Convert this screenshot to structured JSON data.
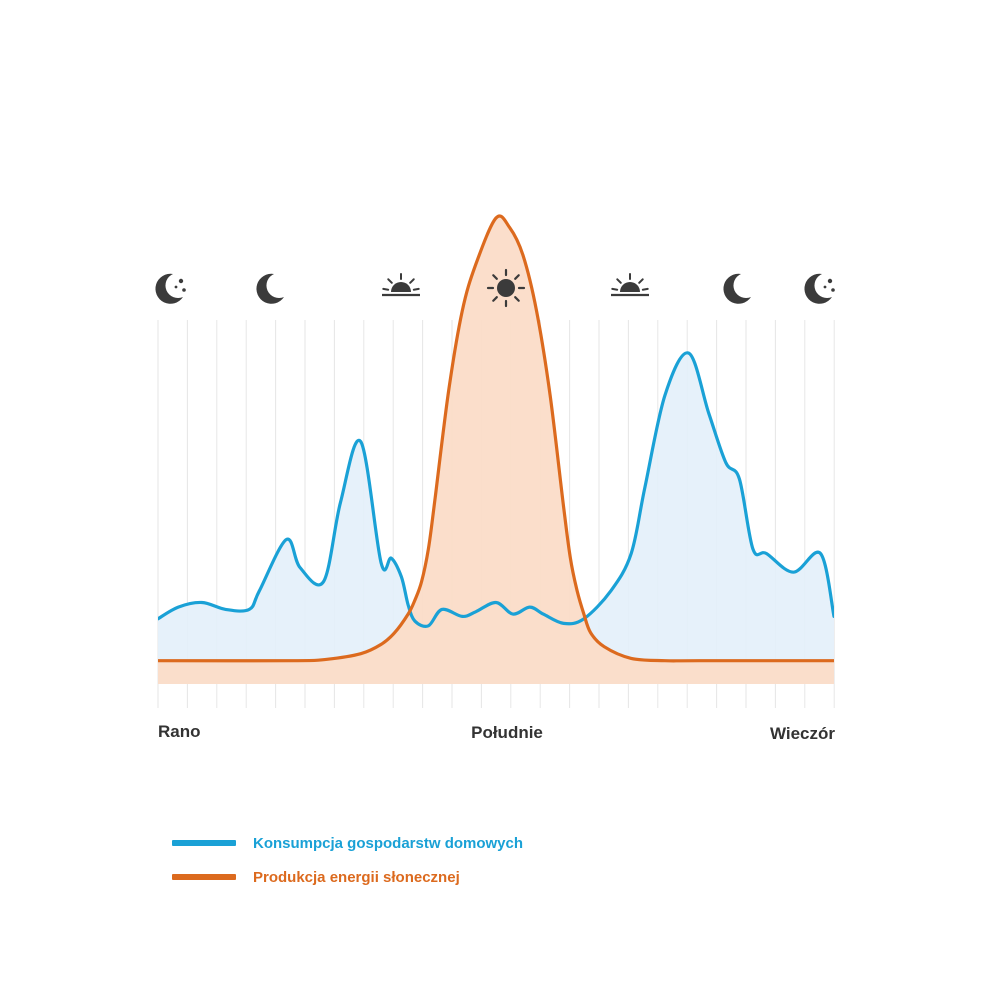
{
  "chart_data": {
    "type": "area",
    "categories": [
      "Rano",
      "Południe",
      "Wieczór"
    ],
    "x_range": [
      0,
      100
    ],
    "y_range": [
      0,
      100
    ],
    "grid": true,
    "legend_position": "bottom-left",
    "series": [
      {
        "name": "Konsumpcja gospodarstw domowych",
        "color": "#1aa1d6",
        "fill": "#e3eff9",
        "x": [
          0,
          3,
          6.5,
          10,
          13.5,
          15,
          19,
          21,
          24.5,
          27,
          30,
          33,
          34.5,
          36,
          37,
          38,
          40,
          42,
          45,
          47,
          50,
          52.5,
          55,
          57,
          60,
          63,
          67,
          70,
          72,
          75,
          78.5,
          81.5,
          84,
          86,
          88,
          90,
          94,
          98,
          100
        ],
        "y": [
          14,
          16.5,
          17.5,
          16,
          16,
          20,
          31,
          25,
          22,
          39,
          52,
          26,
          27,
          23,
          17,
          13.5,
          12.5,
          16,
          14.5,
          15.5,
          17.5,
          15,
          16.5,
          15,
          13,
          14,
          20,
          28,
          42,
          62,
          71,
          58,
          47.5,
          44,
          29,
          28,
          24,
          28,
          14.5
        ]
      },
      {
        "name": "Produkcja energii słonecznej",
        "color": "#dc6a1e",
        "fill": "#fbdcc8",
        "x": [
          0,
          20,
          25,
          30,
          33,
          35,
          37,
          38,
          39,
          40,
          41,
          43,
          45,
          47,
          50,
          52,
          54,
          56,
          58,
          60,
          61,
          62,
          63,
          64,
          66,
          70,
          75,
          80,
          100
        ],
        "y": [
          5,
          5,
          5.3,
          6.5,
          8.5,
          11,
          15,
          18,
          22,
          29,
          40,
          63,
          80,
          90,
          100,
          98,
          92,
          80,
          62,
          38,
          27,
          20,
          15,
          11,
          8,
          5.5,
          5,
          5,
          5
        ]
      }
    ],
    "icons": [
      "moon-stars-icon",
      "moon-icon",
      "sunrise-icon",
      "sun-icon",
      "sunset-icon",
      "moon-icon",
      "moon-stars-icon"
    ]
  }
}
